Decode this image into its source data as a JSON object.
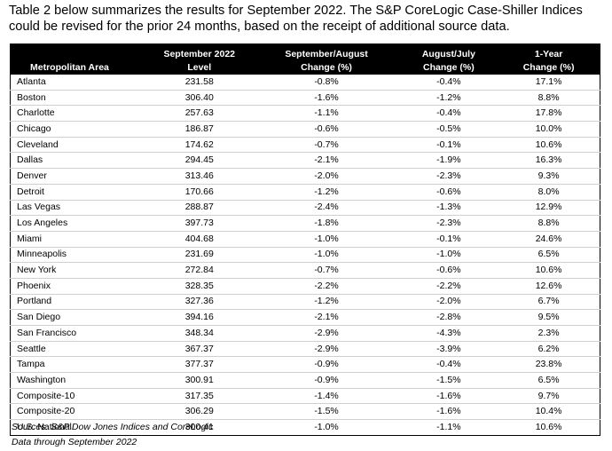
{
  "intro": "Table 2 below summarizes the results for September 2022. The S&P CoreLogic Case-Shiller Indices could be revised for the prior 24 months, based on the receipt of additional source data.",
  "table": {
    "headers": {
      "area": "Metropolitan Area",
      "level_1": "September 2022",
      "level_2": "Level",
      "sep_aug_1": "September/August",
      "sep_aug_2": "Change (%)",
      "aug_jul_1": "August/July",
      "aug_jul_2": "Change (%)",
      "yoy_1": "1-Year",
      "yoy_2": "Change (%)"
    },
    "rows": [
      {
        "area": "Atlanta",
        "level": "231.58",
        "sep_aug": "-0.8%",
        "aug_jul": "-0.4%",
        "yoy": "17.1%"
      },
      {
        "area": "Boston",
        "level": "306.40",
        "sep_aug": "-1.6%",
        "aug_jul": "-1.2%",
        "yoy": "8.8%"
      },
      {
        "area": "Charlotte",
        "level": "257.63",
        "sep_aug": "-1.1%",
        "aug_jul": "-0.4%",
        "yoy": "17.8%"
      },
      {
        "area": "Chicago",
        "level": "186.87",
        "sep_aug": "-0.6%",
        "aug_jul": "-0.5%",
        "yoy": "10.0%"
      },
      {
        "area": "Cleveland",
        "level": "174.62",
        "sep_aug": "-0.7%",
        "aug_jul": "-0.1%",
        "yoy": "10.6%"
      },
      {
        "area": "Dallas",
        "level": "294.45",
        "sep_aug": "-2.1%",
        "aug_jul": "-1.9%",
        "yoy": "16.3%"
      },
      {
        "area": "Denver",
        "level": "313.46",
        "sep_aug": "-2.0%",
        "aug_jul": "-2.3%",
        "yoy": "9.3%"
      },
      {
        "area": "Detroit",
        "level": "170.66",
        "sep_aug": "-1.2%",
        "aug_jul": "-0.6%",
        "yoy": "8.0%"
      },
      {
        "area": "Las Vegas",
        "level": "288.87",
        "sep_aug": "-2.4%",
        "aug_jul": "-1.3%",
        "yoy": "12.9%"
      },
      {
        "area": "Los Angeles",
        "level": "397.73",
        "sep_aug": "-1.8%",
        "aug_jul": "-2.3%",
        "yoy": "8.8%"
      },
      {
        "area": "Miami",
        "level": "404.68",
        "sep_aug": "-1.0%",
        "aug_jul": "-0.1%",
        "yoy": "24.6%"
      },
      {
        "area": "Minneapolis",
        "level": "231.69",
        "sep_aug": "-1.0%",
        "aug_jul": "-1.0%",
        "yoy": "6.5%"
      },
      {
        "area": "New York",
        "level": "272.84",
        "sep_aug": "-0.7%",
        "aug_jul": "-0.6%",
        "yoy": "10.6%"
      },
      {
        "area": "Phoenix",
        "level": "328.35",
        "sep_aug": "-2.2%",
        "aug_jul": "-2.2%",
        "yoy": "12.6%"
      },
      {
        "area": "Portland",
        "level": "327.36",
        "sep_aug": "-1.2%",
        "aug_jul": "-2.0%",
        "yoy": "6.7%"
      },
      {
        "area": "San Diego",
        "level": "394.16",
        "sep_aug": "-2.1%",
        "aug_jul": "-2.8%",
        "yoy": "9.5%"
      },
      {
        "area": "San Francisco",
        "level": "348.34",
        "sep_aug": "-2.9%",
        "aug_jul": "-4.3%",
        "yoy": "2.3%"
      },
      {
        "area": "Seattle",
        "level": "367.37",
        "sep_aug": "-2.9%",
        "aug_jul": "-3.9%",
        "yoy": "6.2%"
      },
      {
        "area": "Tampa",
        "level": "377.37",
        "sep_aug": "-0.9%",
        "aug_jul": "-0.4%",
        "yoy": "23.8%"
      },
      {
        "area": "Washington",
        "level": "300.91",
        "sep_aug": "-0.9%",
        "aug_jul": "-1.5%",
        "yoy": "6.5%"
      },
      {
        "area": "Composite-10",
        "level": "317.35",
        "sep_aug": "-1.4%",
        "aug_jul": "-1.6%",
        "yoy": "9.7%"
      },
      {
        "area": "Composite-20",
        "level": "306.29",
        "sep_aug": "-1.5%",
        "aug_jul": "-1.6%",
        "yoy": "10.4%"
      },
      {
        "area": "U.S. National",
        "level": "300.41",
        "sep_aug": "-1.0%",
        "aug_jul": "-1.1%",
        "yoy": "10.6%"
      }
    ]
  },
  "footnotes": {
    "sources": "Sources: S&P Dow Jones Indices and CoreLogic",
    "data_through": "Data through September 2022"
  }
}
